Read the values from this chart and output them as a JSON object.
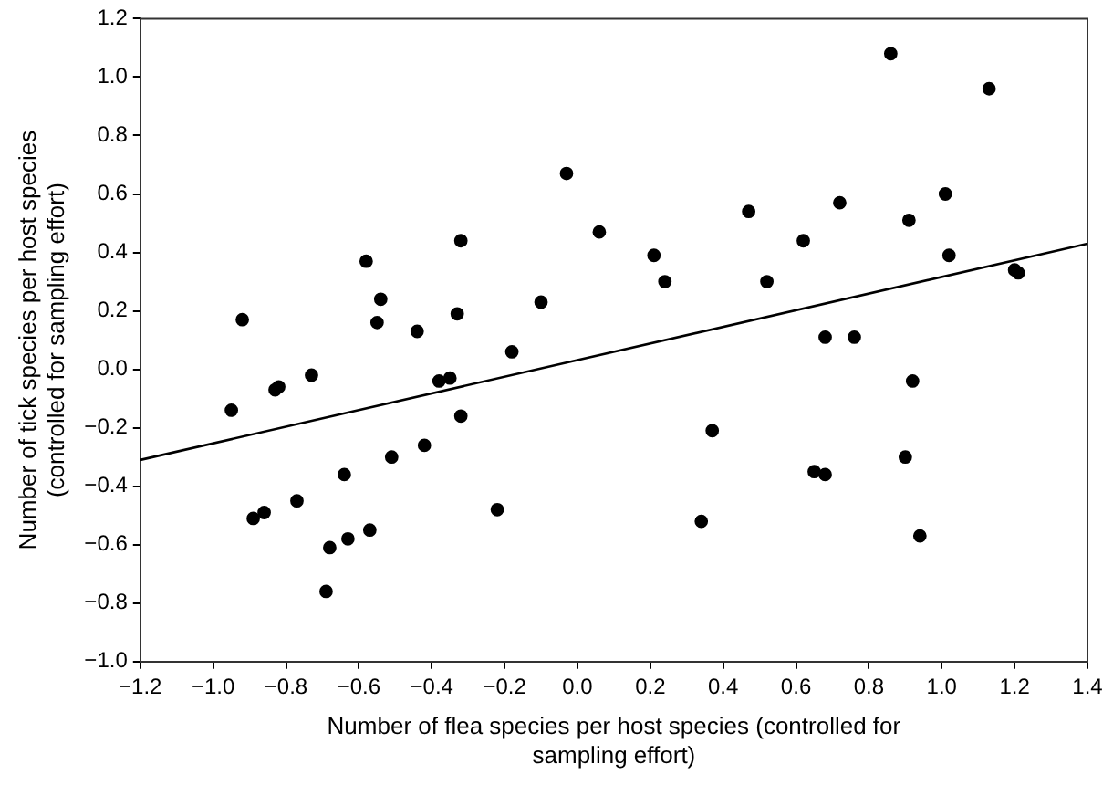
{
  "chart_data": {
    "type": "scatter",
    "xlabel": "Number of flea species per host species (controlled for sampling effort)",
    "ylabel": "Number of tick species per host species (controlled for sampling effort)",
    "xlim": [
      -1.2,
      1.4
    ],
    "ylim": [
      -1.0,
      1.2
    ],
    "xticks": [
      {
        "value": -1.2,
        "label": "−1.2"
      },
      {
        "value": -1.0,
        "label": "−1.0"
      },
      {
        "value": -0.8,
        "label": "−0.8"
      },
      {
        "value": -0.6,
        "label": "−0.6"
      },
      {
        "value": -0.4,
        "label": "−0.4"
      },
      {
        "value": -0.2,
        "label": "−0.2"
      },
      {
        "value": 0,
        "label": "0.0"
      },
      0.2,
      0.4,
      0.6,
      0.8,
      {
        "value": 1.0,
        "label": "1.0"
      },
      1.2,
      1.4
    ],
    "yticks": [
      {
        "value": -1.0,
        "label": "−1.0"
      },
      {
        "value": -0.8,
        "label": "−0.8"
      },
      {
        "value": -0.6,
        "label": "−0.6"
      },
      {
        "value": -0.4,
        "label": "−0.4"
      },
      {
        "value": -0.2,
        "label": "−0.2"
      },
      {
        "value": 0,
        "label": "0.0"
      },
      0.2,
      0.4,
      0.6,
      0.8,
      {
        "value": 1.0,
        "label": "1.0"
      },
      1.2
    ],
    "grid": false,
    "legend": false,
    "marker": "circle",
    "series": [
      {
        "type": "scatter",
        "color": "#000000",
        "x": [
          -0.95,
          -0.92,
          -0.89,
          -0.86,
          -0.83,
          -0.82,
          -0.77,
          -0.73,
          -0.69,
          -0.68,
          -0.64,
          -0.63,
          -0.58,
          -0.57,
          -0.55,
          -0.54,
          -0.51,
          -0.44,
          -0.42,
          -0.38,
          -0.35,
          -0.33,
          -0.32,
          -0.32,
          -0.22,
          -0.18,
          -0.1,
          -0.03,
          0.06,
          0.21,
          0.24,
          0.34,
          0.37,
          0.47,
          0.52,
          0.62,
          0.65,
          0.68,
          0.68,
          0.72,
          0.76,
          0.86,
          0.9,
          0.91,
          0.92,
          0.94,
          1.01,
          1.02,
          1.13,
          1.2,
          1.21
        ],
        "values": [
          -0.14,
          0.17,
          -0.51,
          -0.49,
          -0.07,
          -0.06,
          -0.45,
          -0.02,
          -0.76,
          -0.61,
          -0.36,
          -0.58,
          0.37,
          -0.55,
          0.16,
          0.24,
          -0.3,
          0.13,
          -0.26,
          -0.04,
          -0.03,
          0.19,
          0.44,
          -0.16,
          -0.48,
          0.06,
          0.23,
          0.67,
          0.47,
          0.39,
          0.3,
          -0.52,
          -0.21,
          0.54,
          0.3,
          0.44,
          -0.35,
          -0.36,
          0.11,
          0.57,
          0.11,
          1.08,
          -0.3,
          0.51,
          -0.04,
          -0.57,
          0.6,
          0.39,
          0.96,
          0.34,
          0.33
        ]
      },
      {
        "type": "line",
        "color": "#000000",
        "x": [
          -1.2,
          1.4
        ],
        "values": [
          -0.31,
          0.43
        ],
        "marker": "none",
        "line_style": "solid"
      }
    ]
  }
}
